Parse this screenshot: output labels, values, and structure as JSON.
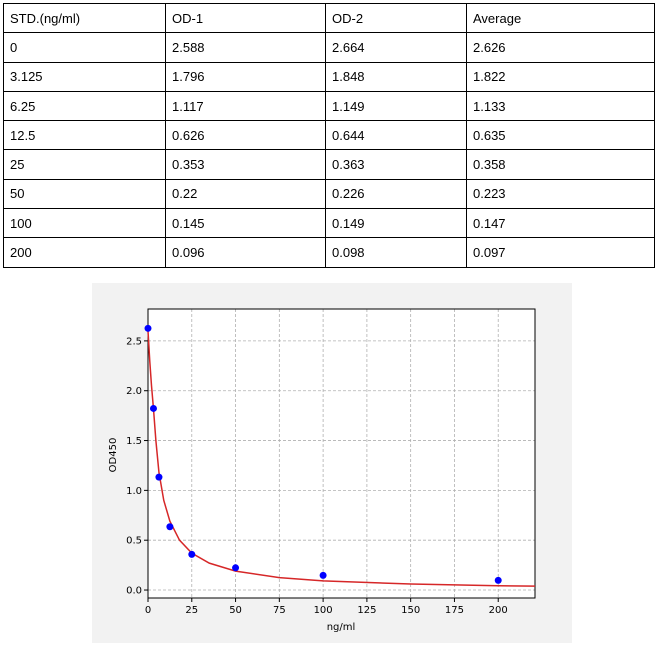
{
  "table": {
    "header": [
      "STD.(ng/ml)",
      "OD-1",
      "OD-2",
      "Average"
    ],
    "rows": [
      [
        "0",
        "2.588",
        "2.664",
        "2.626"
      ],
      [
        "3.125",
        "1.796",
        "1.848",
        "1.822"
      ],
      [
        "6.25",
        "1.117",
        "1.149",
        "1.133"
      ],
      [
        "12.5",
        "0.626",
        "0.644",
        "0.635"
      ],
      [
        "25",
        "0.353",
        "0.363",
        "0.358"
      ],
      [
        "50",
        "0.22",
        "0.226",
        "0.223"
      ],
      [
        "100",
        "0.145",
        "0.149",
        "0.147"
      ],
      [
        "200",
        "0.096",
        "0.098",
        "0.097"
      ]
    ]
  },
  "chart_data": {
    "type": "scatter",
    "xlabel": "ng/ml",
    "ylabel": "OD450",
    "xlim": [
      0,
      221
    ],
    "ylim": [
      -0.08,
      2.82
    ],
    "xticks": [
      0,
      25,
      50,
      75,
      100,
      125,
      150,
      175,
      200
    ],
    "yticks": [
      {
        "value": 0,
        "label": "0.0"
      },
      0.5,
      {
        "value": 1,
        "label": "1.0"
      },
      1.5,
      {
        "value": 2,
        "label": "2.0"
      },
      2.5
    ],
    "grid": true,
    "series": [
      {
        "style": "line",
        "color": "#d62728",
        "x": [
          0,
          1,
          2,
          3.125,
          4.5,
          6.25,
          9,
          12.5,
          18,
          25,
          35,
          50,
          75,
          100,
          150,
          200,
          221
        ],
        "values": [
          2.6,
          2.3,
          2.05,
          1.82,
          1.5,
          1.18,
          0.9,
          0.69,
          0.5,
          0.37,
          0.27,
          0.19,
          0.125,
          0.092,
          0.06,
          0.043,
          0.039
        ]
      },
      {
        "style": "marker",
        "color": "#0000ff",
        "x": [
          0,
          3.125,
          6.25,
          12.5,
          25,
          50,
          100,
          200
        ],
        "values": [
          2.626,
          1.822,
          1.133,
          0.635,
          0.358,
          0.223,
          0.147,
          0.097
        ]
      }
    ]
  }
}
